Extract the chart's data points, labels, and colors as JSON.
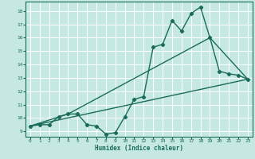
{
  "xlabel": "Humidex (Indice chaleur)",
  "xlim": [
    -0.5,
    23.5
  ],
  "ylim": [
    8.6,
    18.7
  ],
  "yticks": [
    9,
    10,
    11,
    12,
    13,
    14,
    15,
    16,
    17,
    18
  ],
  "xticks": [
    0,
    1,
    2,
    3,
    4,
    5,
    6,
    7,
    8,
    9,
    10,
    11,
    12,
    13,
    14,
    15,
    16,
    17,
    18,
    19,
    20,
    21,
    22,
    23
  ],
  "bg_color": "#c5e8e2",
  "grid_color": "#ffffff",
  "line_color": "#1a6b5a",
  "line1_x": [
    0,
    1,
    2,
    3,
    4,
    5,
    6,
    7,
    8,
    9,
    10,
    11,
    12,
    13,
    14,
    15,
    16,
    17,
    18,
    19,
    20,
    21,
    22,
    23
  ],
  "line1_y": [
    9.4,
    9.5,
    9.5,
    10.1,
    10.3,
    10.3,
    9.5,
    9.4,
    8.8,
    8.9,
    10.1,
    11.4,
    11.6,
    15.3,
    15.5,
    17.3,
    16.5,
    17.8,
    18.3,
    16.0,
    13.5,
    13.3,
    13.2,
    12.9
  ],
  "line2_x": [
    0,
    4,
    19,
    23
  ],
  "line2_y": [
    9.4,
    10.3,
    16.0,
    12.9
  ],
  "line3_x": [
    0,
    23
  ],
  "line3_y": [
    9.4,
    12.9
  ]
}
